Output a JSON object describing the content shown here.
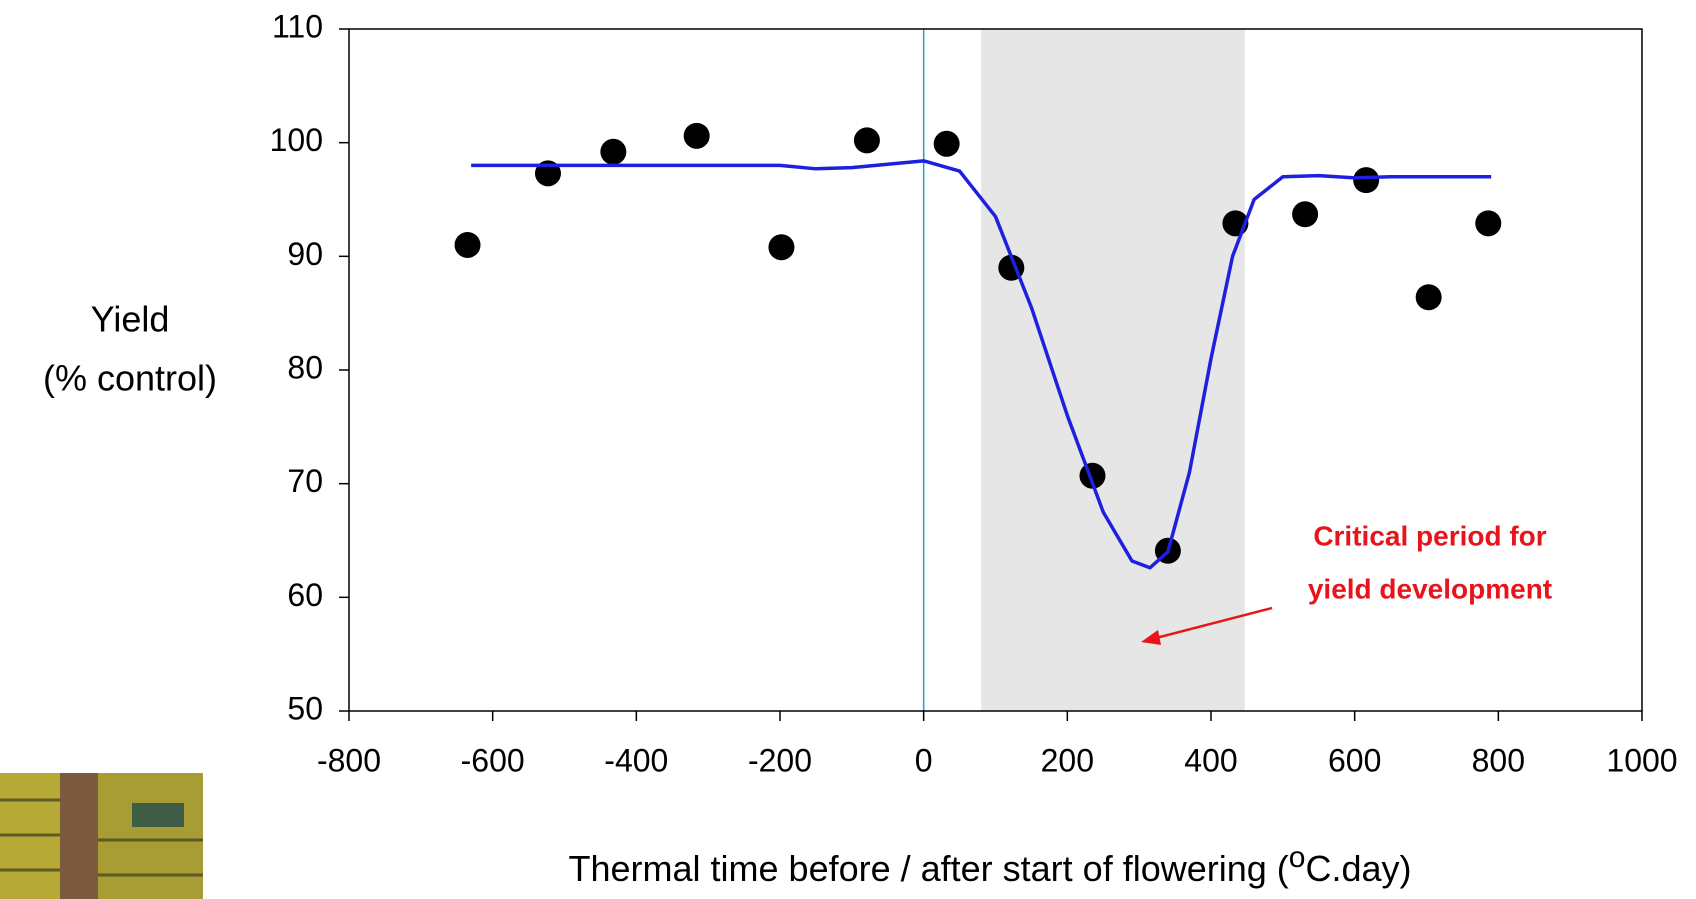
{
  "chart_data": {
    "type": "scatter",
    "y_label": [
      "Yield",
      "(% control)"
    ],
    "x_label": [
      "Thermal time before / after start of flowering (",
      "o",
      "C.day)"
    ],
    "annotation": [
      "Critical period for",
      "yield development"
    ],
    "xlim": [
      -800,
      1000
    ],
    "ylim": [
      50,
      110
    ],
    "xticks": [
      -800,
      -600,
      -400,
      -200,
      0,
      200,
      400,
      600,
      800,
      1000
    ],
    "yticks": [
      50,
      60,
      70,
      80,
      90,
      100,
      110
    ],
    "shaded_region": [
      80,
      447
    ],
    "shaded_color": "#e6e6e6",
    "vertical_line": 0,
    "vertical_line_color": "#1aa3cc",
    "series": [
      {
        "color": "#000000",
        "x": [
          -635,
          -523,
          -432,
          -316,
          -198,
          -79,
          32,
          122,
          235,
          340,
          434,
          531,
          616,
          703,
          786
        ],
        "values": [
          91,
          97.3,
          99.2,
          100.6,
          90.8,
          100.2,
          99.9,
          89,
          70.7,
          64.1,
          92.9,
          93.7,
          96.7,
          86.4,
          92.9
        ]
      },
      {
        "type": "line",
        "color": "#1f1fe0",
        "x": [
          -630,
          -400,
          -200,
          -150,
          -100,
          -50,
          0,
          50,
          100,
          150,
          200,
          250,
          290,
          315,
          340,
          370,
          400,
          430,
          460,
          500,
          550,
          600,
          650,
          790
        ],
        "values": [
          98,
          98,
          98,
          97.7,
          97.8,
          98.1,
          98.4,
          97.5,
          93.5,
          85.5,
          76,
          67.5,
          63.2,
          62.6,
          64,
          71,
          81,
          90,
          95,
          97,
          97.1,
          96.9,
          97,
          97
        ]
      }
    ]
  }
}
